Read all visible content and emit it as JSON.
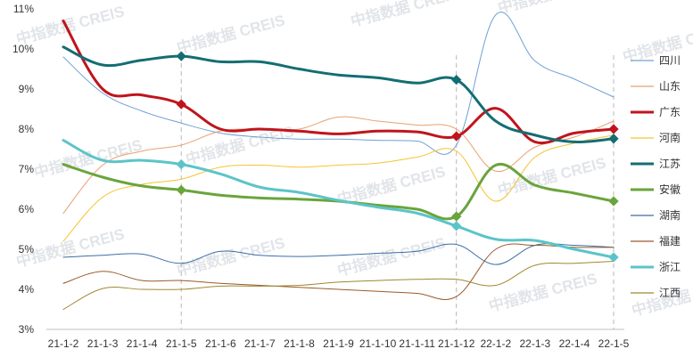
{
  "chart_data": {
    "type": "line",
    "title": "",
    "xlabel": "",
    "ylabel": "",
    "categories": [
      "21-1-2",
      "21-1-3",
      "21-1-4",
      "21-1-5",
      "21-1-6",
      "21-1-7",
      "21-1-8",
      "21-1-9",
      "21-1-10",
      "21-1-11",
      "21-1-12",
      "22-1-2",
      "22-1-3",
      "22-1-4",
      "22-1-5"
    ],
    "x_tick_labels": [
      "21-1-2",
      "21-1-3",
      "21-1-4",
      "21-1-5",
      "21-1-6",
      "21-1-7",
      "21-1-8",
      "21-1-9",
      "21-1-10",
      "21-1-11",
      "21-1-12",
      "22-1-2",
      "22-1-3",
      "22-1-4",
      "22-1-5"
    ],
    "ylim": [
      3,
      11
    ],
    "y_ticks": [
      3,
      4,
      5,
      6,
      7,
      8,
      9,
      10,
      11
    ],
    "y_tick_labels": [
      "3%",
      "4%",
      "5%",
      "6%",
      "7%",
      "8%",
      "9%",
      "10%",
      "11%"
    ],
    "grid": false,
    "legend_position": "right",
    "reference_lines_at": [
      "21-1-5",
      "21-1-12",
      "22-1-5"
    ],
    "watermark": "中指数据 CREIS",
    "series": [
      {
        "name": "四川",
        "color": "#6fa0d6",
        "width": 1,
        "markers": false,
        "values": [
          9.8,
          8.9,
          8.45,
          8.15,
          7.9,
          7.8,
          7.75,
          7.75,
          7.72,
          7.7,
          7.6,
          10.85,
          9.7,
          9.25,
          8.8
        ]
      },
      {
        "name": "山东",
        "color": "#e8a070",
        "width": 1,
        "markers": false,
        "values": [
          5.9,
          7.1,
          7.45,
          7.6,
          7.95,
          8.0,
          8.0,
          8.3,
          8.2,
          8.1,
          8.0,
          6.95,
          7.55,
          7.8,
          8.2
        ]
      },
      {
        "name": "广东",
        "color": "#c0141c",
        "width": 3,
        "markers": true,
        "values": [
          10.7,
          9.0,
          8.85,
          8.62,
          8.0,
          8.0,
          7.95,
          7.88,
          7.95,
          7.93,
          7.82,
          8.52,
          7.68,
          7.9,
          8.0
        ]
      },
      {
        "name": "河南",
        "color": "#f5c430",
        "width": 1,
        "markers": false,
        "values": [
          5.2,
          6.3,
          6.62,
          6.75,
          7.05,
          7.1,
          7.05,
          7.1,
          7.15,
          7.3,
          7.45,
          6.2,
          7.3,
          7.65,
          7.85
        ]
      },
      {
        "name": "江苏",
        "color": "#136e73",
        "width": 3,
        "markers": true,
        "values": [
          10.05,
          9.6,
          9.72,
          9.82,
          9.68,
          9.68,
          9.5,
          9.35,
          9.28,
          9.15,
          9.23,
          8.2,
          7.85,
          7.68,
          7.76
        ]
      },
      {
        "name": "安徽",
        "color": "#6aa43c",
        "width": 3,
        "markers": true,
        "values": [
          7.12,
          6.8,
          6.58,
          6.48,
          6.35,
          6.28,
          6.25,
          6.2,
          6.1,
          6.0,
          5.82,
          7.1,
          6.6,
          6.4,
          6.2
        ]
      },
      {
        "name": "湖南",
        "color": "#3c6ea8",
        "width": 1,
        "markers": false,
        "values": [
          4.8,
          4.85,
          4.88,
          4.65,
          4.95,
          4.85,
          4.82,
          4.85,
          4.9,
          4.95,
          5.12,
          4.62,
          5.1,
          5.1,
          5.05
        ]
      },
      {
        "name": "福建",
        "color": "#9a5a2c",
        "width": 1,
        "markers": false,
        "values": [
          4.15,
          4.45,
          4.22,
          4.22,
          4.15,
          4.1,
          4.05,
          4.0,
          3.95,
          3.9,
          3.82,
          5.0,
          5.1,
          5.05,
          5.05
        ]
      },
      {
        "name": "浙江",
        "color": "#5cc4c8",
        "width": 3,
        "markers": true,
        "values": [
          7.72,
          7.22,
          7.22,
          7.12,
          6.88,
          6.55,
          6.42,
          6.22,
          6.05,
          5.9,
          5.58,
          5.25,
          5.22,
          5.0,
          4.8
        ]
      },
      {
        "name": "江西",
        "color": "#a08830",
        "width": 1,
        "markers": false,
        "values": [
          3.5,
          4.02,
          4.0,
          4.0,
          4.08,
          4.08,
          4.1,
          4.18,
          4.22,
          4.25,
          4.25,
          4.1,
          4.6,
          4.65,
          4.7
        ]
      }
    ]
  }
}
